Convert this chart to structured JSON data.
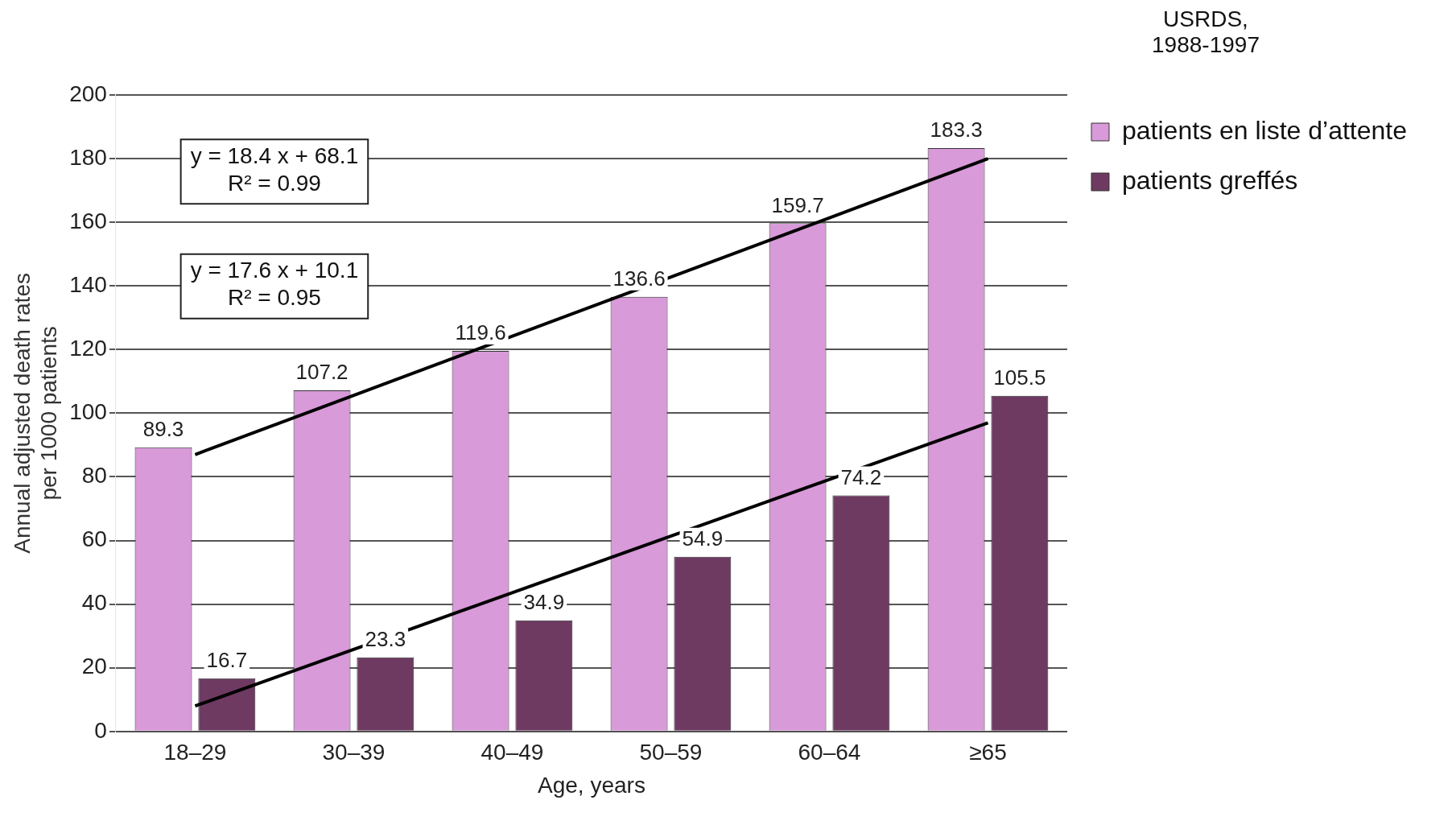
{
  "chart_data": {
    "type": "bar",
    "xlabel": "Age, years",
    "ylabel": "Annual adjusted death rates\nper 1000 patients",
    "categories": [
      "18–29",
      "30–39",
      "40–49",
      "50–59",
      "60–64",
      "≥65"
    ],
    "series": [
      {
        "name": "patients en liste d’attente",
        "color": "#d89ad8",
        "values": [
          89.3,
          107.2,
          119.6,
          136.6,
          159.7,
          183.3
        ],
        "value_labels": [
          "89.3",
          "107.2",
          "119.6",
          "136.6",
          "159.7",
          "183.3"
        ]
      },
      {
        "name": "patients greffés",
        "color": "#6e3a62",
        "values": [
          16.7,
          23.3,
          34.9,
          54.9,
          74.2,
          105.5
        ],
        "value_labels": [
          "16.7",
          "23.3",
          "34.9",
          "54.9",
          "74.2",
          "105.5"
        ]
      },
      {
        "type": "line",
        "color": "#000000",
        "x": [
          "18–29",
          "≥65"
        ],
        "values": [
          87,
          180
        ]
      },
      {
        "type": "line",
        "color": "#000000",
        "x": [
          "18–29",
          "≥65"
        ],
        "values": [
          8,
          97
        ]
      }
    ],
    "ylim": [
      0,
      200
    ],
    "yticks": [
      0,
      20,
      40,
      60,
      80,
      100,
      120,
      140,
      160,
      180,
      200
    ],
    "grid": "y",
    "legend": "right",
    "annotations": [
      "USRDS,\n1988-1997",
      "y = 18.4 x + 68.1\nR² = 0.99",
      "y = 17.6 x + 10.1\nR² = 0.95"
    ]
  }
}
